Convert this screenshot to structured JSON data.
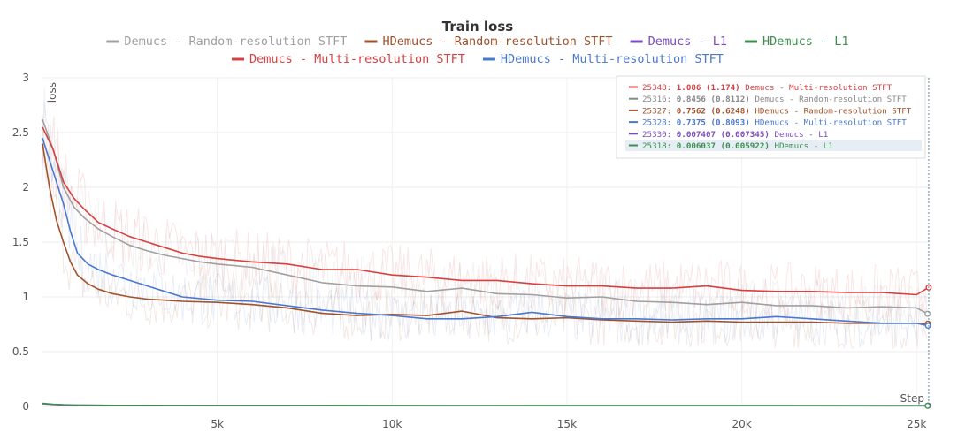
{
  "chart_data": {
    "type": "line",
    "title": "Train loss",
    "xlabel": "Step",
    "ylabel": "loss",
    "xlim": [
      0,
      25400
    ],
    "ylim": [
      0,
      3
    ],
    "x_ticks": [
      5000,
      10000,
      15000,
      20000,
      25000
    ],
    "x_tick_labels": [
      "5k",
      "10k",
      "15k",
      "20k",
      "25k"
    ],
    "y_ticks": [
      0,
      0.5,
      1,
      1.5,
      2,
      2.5,
      3
    ],
    "y_tick_labels": [
      "0",
      "0.5",
      "1",
      "1.5",
      "2",
      "2.5",
      "3"
    ],
    "grid": true,
    "legend_position": "top",
    "legend_order": [
      0,
      1,
      2,
      3,
      4,
      5
    ],
    "series": [
      {
        "name": "Demucs - Random-resolution STFT",
        "color": "#a0a0a0",
        "x": [
          0,
          300,
          600,
          900,
          1200,
          1600,
          2000,
          2500,
          3000,
          3500,
          4000,
          4500,
          5000,
          6000,
          7000,
          8000,
          9000,
          10000,
          11000,
          12000,
          13000,
          14000,
          15000,
          16000,
          17000,
          18000,
          19000,
          20000,
          21000,
          22000,
          23000,
          24000,
          25000,
          25316
        ],
        "y": [
          2.62,
          2.35,
          2.0,
          1.82,
          1.72,
          1.62,
          1.55,
          1.47,
          1.42,
          1.38,
          1.35,
          1.32,
          1.3,
          1.27,
          1.2,
          1.13,
          1.1,
          1.09,
          1.05,
          1.08,
          1.03,
          1.02,
          0.99,
          1.0,
          0.96,
          0.95,
          0.93,
          0.95,
          0.92,
          0.92,
          0.9,
          0.91,
          0.9,
          0.8456
        ]
      },
      {
        "name": "HDemucs - Random-resolution STFT",
        "color": "#a0522d",
        "x": [
          0,
          200,
          400,
          600,
          800,
          1000,
          1300,
          1600,
          2000,
          2500,
          3000,
          3500,
          4000,
          5000,
          6000,
          7000,
          8000,
          9000,
          10000,
          11000,
          12000,
          13000,
          14000,
          15000,
          16000,
          17000,
          18000,
          19000,
          20000,
          21000,
          22000,
          23000,
          24000,
          25000,
          25327
        ],
        "y": [
          2.4,
          2.0,
          1.7,
          1.5,
          1.32,
          1.2,
          1.12,
          1.07,
          1.03,
          1.0,
          0.98,
          0.97,
          0.96,
          0.95,
          0.93,
          0.9,
          0.85,
          0.83,
          0.84,
          0.83,
          0.87,
          0.81,
          0.8,
          0.81,
          0.79,
          0.78,
          0.77,
          0.78,
          0.77,
          0.77,
          0.77,
          0.76,
          0.76,
          0.76,
          0.7562
        ]
      },
      {
        "name": "Demucs - L1",
        "color": "#7b4cc0",
        "x": [
          0,
          300,
          600,
          1000,
          2000,
          5000,
          10000,
          15000,
          20000,
          25000,
          25330
        ],
        "y": [
          0.025,
          0.018,
          0.014,
          0.011,
          0.01,
          0.009,
          0.008,
          0.008,
          0.0075,
          0.0074,
          0.007407
        ]
      },
      {
        "name": "HDemucs - L1",
        "color": "#3e8f4f",
        "x": [
          0,
          300,
          600,
          1000,
          2000,
          5000,
          10000,
          15000,
          20000,
          25000,
          25318
        ],
        "y": [
          0.028,
          0.02,
          0.015,
          0.012,
          0.01,
          0.008,
          0.007,
          0.0065,
          0.0062,
          0.006,
          0.006037
        ]
      },
      {
        "name": "Demucs - Multi-resolution STFT",
        "color": "#d84040",
        "x": [
          0,
          300,
          600,
          900,
          1200,
          1600,
          2000,
          2500,
          3000,
          3500,
          4000,
          4500,
          5000,
          6000,
          7000,
          8000,
          9000,
          10000,
          11000,
          12000,
          13000,
          14000,
          15000,
          16000,
          17000,
          18000,
          19000,
          20000,
          21000,
          22000,
          23000,
          24000,
          25000,
          25348
        ],
        "y": [
          2.55,
          2.35,
          2.05,
          1.9,
          1.8,
          1.68,
          1.62,
          1.55,
          1.5,
          1.45,
          1.4,
          1.37,
          1.35,
          1.32,
          1.3,
          1.25,
          1.25,
          1.2,
          1.18,
          1.15,
          1.15,
          1.12,
          1.1,
          1.1,
          1.08,
          1.08,
          1.1,
          1.06,
          1.05,
          1.05,
          1.04,
          1.04,
          1.02,
          1.086
        ]
      },
      {
        "name": "HDemucs - Multi-resolution STFT",
        "color": "#4a78d0",
        "x": [
          0,
          200,
          400,
          600,
          800,
          1000,
          1300,
          1600,
          2000,
          2500,
          3000,
          3500,
          4000,
          5000,
          6000,
          7000,
          8000,
          9000,
          10000,
          11000,
          12000,
          13000,
          14000,
          15000,
          16000,
          17000,
          18000,
          19000,
          20000,
          21000,
          22000,
          23000,
          24000,
          25000,
          25328
        ],
        "y": [
          2.45,
          2.25,
          2.05,
          1.85,
          1.6,
          1.4,
          1.3,
          1.25,
          1.2,
          1.15,
          1.1,
          1.05,
          1.0,
          0.97,
          0.96,
          0.92,
          0.88,
          0.85,
          0.83,
          0.8,
          0.8,
          0.82,
          0.86,
          0.82,
          0.8,
          0.8,
          0.79,
          0.8,
          0.8,
          0.82,
          0.8,
          0.78,
          0.76,
          0.76,
          0.7375
        ]
      }
    ]
  },
  "tooltip": {
    "rows": [
      {
        "step": "25348:",
        "value": "1.086",
        "smoothed": "(1.174)",
        "name": "Demucs - Multi-resolution STFT",
        "color": "#d84040",
        "highlight": false
      },
      {
        "step": "25316:",
        "value": "0.8456",
        "smoothed": "(0.8112)",
        "name": "Demucs - Random-resolution STFT",
        "color": "#888888",
        "highlight": false
      },
      {
        "step": "25327:",
        "value": "0.7562",
        "smoothed": "(0.6248)",
        "name": "HDemucs - Random-resolution STFT",
        "color": "#a0522d",
        "highlight": false
      },
      {
        "step": "25328:",
        "value": "0.7375",
        "smoothed": "(0.8093)",
        "name": "HDemucs - Multi-resolution STFT",
        "color": "#4a78d0",
        "highlight": false
      },
      {
        "step": "25330:",
        "value": "0.007407",
        "smoothed": "(0.007345)",
        "name": "Demucs - L1",
        "color": "#7b4cc0",
        "highlight": false
      },
      {
        "step": "25318:",
        "value": "0.006037",
        "smoothed": "(0.005922)",
        "name": "HDemucs - L1",
        "color": "#3e8f4f",
        "highlight": true
      }
    ]
  }
}
